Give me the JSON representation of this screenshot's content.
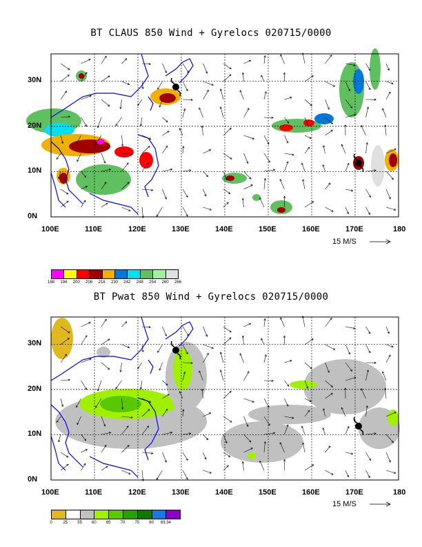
{
  "panel1": {
    "title": "BT CLAUS 850 Wind + Gyrelocs 020715/0000",
    "lat_labels": [
      "30N",
      "20N",
      "10N",
      "0N"
    ],
    "lon_labels": [
      "100E",
      "110E",
      "120E",
      "130E",
      "140E",
      "150E",
      "160E",
      "170E",
      "180"
    ],
    "scale_label": "15 M/S",
    "legend": {
      "colors": [
        "#ff00ff",
        "#ffff00",
        "#ff0000",
        "#a00000",
        "#f0b000",
        "#0078d8",
        "#00e0f0",
        "#60c060",
        "#a0f0a0",
        "#e0e0e0"
      ],
      "labels": [
        "188",
        "194",
        "200",
        "206",
        "218",
        "230",
        "242",
        "248",
        "254",
        "260",
        "266"
      ]
    }
  },
  "panel2": {
    "title": "BT Pwat 850 Wind + Gyrelocs 020715/0000",
    "lat_labels": [
      "30N",
      "20N",
      "10N",
      "0N"
    ],
    "lon_labels": [
      "100E",
      "110E",
      "120E",
      "130E",
      "140E",
      "150E",
      "160E",
      "170E",
      "180"
    ],
    "scale_label": "15 M/S",
    "legend": {
      "colors": [
        "#e0b820",
        "#ffffff",
        "#c0c0c0",
        "#a0f000",
        "#58c800",
        "#28a000",
        "#107800",
        "#1a78e0",
        "#8a00c8"
      ],
      "labels": [
        "0",
        "25",
        "55",
        "60",
        "65",
        "70",
        "75",
        "80",
        "69.34"
      ]
    }
  },
  "map": {
    "coast_color": "#0000ff",
    "grid_color": "#000000"
  }
}
